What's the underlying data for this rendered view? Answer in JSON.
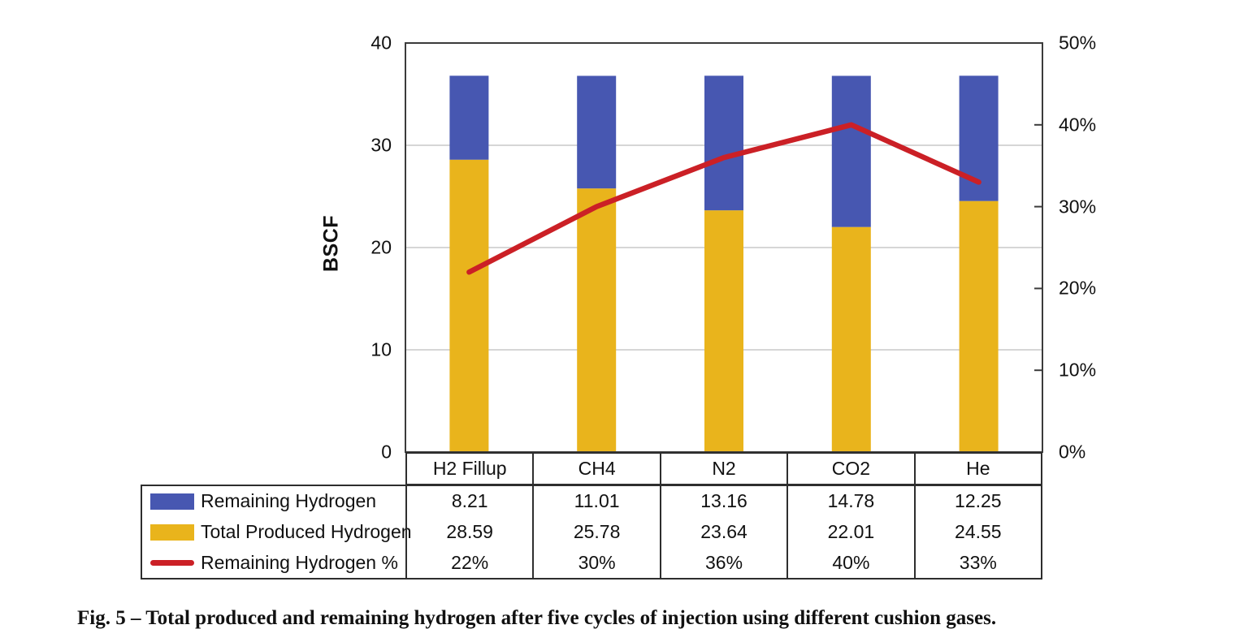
{
  "figure": {
    "caption": "Fig. 5 – Total produced and remaining hydrogen after five cycles of injection using different cushion gases."
  },
  "colors": {
    "remaining_hydrogen_bar": "#4757b1",
    "total_produced_bar": "#e9b41c",
    "remaining_percent_line": "#cb2026",
    "gridline": "#c8c8c8",
    "axis_frame": "#3b3b3b",
    "table_border": "#2e2e2e",
    "text": "#111111"
  },
  "chart_data": {
    "type": "bar+line (stacked bars, secondary-axis line)",
    "categories": [
      "H2 Fillup",
      "CH4",
      "N2",
      "CO2",
      "He"
    ],
    "series": [
      {
        "name": "Remaining Hydrogen",
        "kind": "bar",
        "stack": "top",
        "color": "#4757b1",
        "values": [
          8.21,
          11.01,
          13.16,
          14.78,
          12.25
        ],
        "display": [
          "8.21",
          "11.01",
          "13.16",
          "14.78",
          "12.25"
        ]
      },
      {
        "name": "Total Produced Hydrogen",
        "kind": "bar",
        "stack": "bottom",
        "color": "#e9b41c",
        "values": [
          28.59,
          25.78,
          23.64,
          22.01,
          24.55
        ],
        "display": [
          "28.59",
          "25.78",
          "23.64",
          "22.01",
          "24.55"
        ]
      },
      {
        "name": "Remaining Hydrogen %",
        "kind": "line",
        "axis": "right",
        "color": "#cb2026",
        "values": [
          22,
          30,
          36,
          40,
          33
        ],
        "display": [
          "22%",
          "30%",
          "36%",
          "40%",
          "33%"
        ]
      }
    ],
    "left_axis": {
      "label": "BSCF",
      "min": 0,
      "max": 40,
      "ticks": [
        0,
        10,
        20,
        30,
        40
      ]
    },
    "right_axis": {
      "min": 0,
      "max": 50,
      "ticks": [
        {
          "label": "0%",
          "value": 0
        },
        {
          "label": "10%",
          "value": 10
        },
        {
          "label": "20%",
          "value": 20
        },
        {
          "label": "30%",
          "value": 30
        },
        {
          "label": "40%",
          "value": 40
        },
        {
          "label": "50%",
          "value": 50
        }
      ]
    },
    "gridlines_left_values": [
      10,
      20,
      30
    ],
    "grid": true,
    "legend_position": "bottom-left of data table"
  }
}
